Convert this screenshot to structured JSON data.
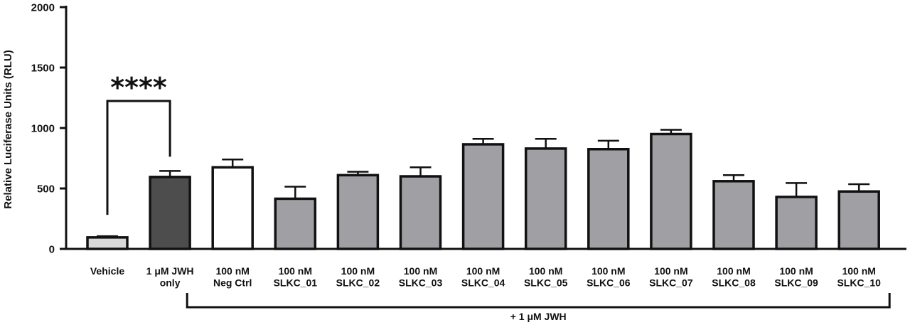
{
  "chart_data": {
    "type": "bar",
    "categories": [
      [
        "Vehicle"
      ],
      [
        "1 μM JWH",
        "only"
      ],
      [
        "100 nM",
        "Neg Ctrl"
      ],
      [
        "100 nM",
        "SLKC_01"
      ],
      [
        "100 nM",
        "SLKC_02"
      ],
      [
        "100 nM",
        "SLKC_03"
      ],
      [
        "100 nM",
        "SLKC_04"
      ],
      [
        "100 nM",
        "SLKC_05"
      ],
      [
        "100 nM",
        "SLKC_06"
      ],
      [
        "100 nM",
        "SLKC_07"
      ],
      [
        "100 nM",
        "SLKC_08"
      ],
      [
        "100 nM",
        "SLKC_09"
      ],
      [
        "100 nM",
        "SLKC_10"
      ]
    ],
    "values": [
      95,
      595,
      675,
      415,
      610,
      600,
      865,
      830,
      825,
      950,
      560,
      430,
      475
    ],
    "errors": [
      10,
      50,
      65,
      100,
      28,
      75,
      45,
      80,
      70,
      35,
      50,
      115,
      60
    ],
    "colors": [
      "#d9d9d9",
      "#4d4d4d",
      "#ffffff",
      "#a0a0a4",
      "#a0a0a4",
      "#a0a0a4",
      "#a0a0a4",
      "#a0a0a4",
      "#a0a0a4",
      "#a0a0a4",
      "#a0a0a4",
      "#a0a0a4",
      "#a0a0a4"
    ],
    "ylabel": "Relative Luciferase Units (RLU)",
    "ylim": [
      0,
      2000
    ],
    "yticks": [
      "0",
      "500",
      "1000",
      "1500",
      "2000"
    ],
    "significance": {
      "from": 0,
      "to": 1,
      "label": "****"
    },
    "group": {
      "from": 2,
      "to": 12,
      "label": "+ 1 μM JWH"
    },
    "grid": false,
    "legend": "none"
  }
}
